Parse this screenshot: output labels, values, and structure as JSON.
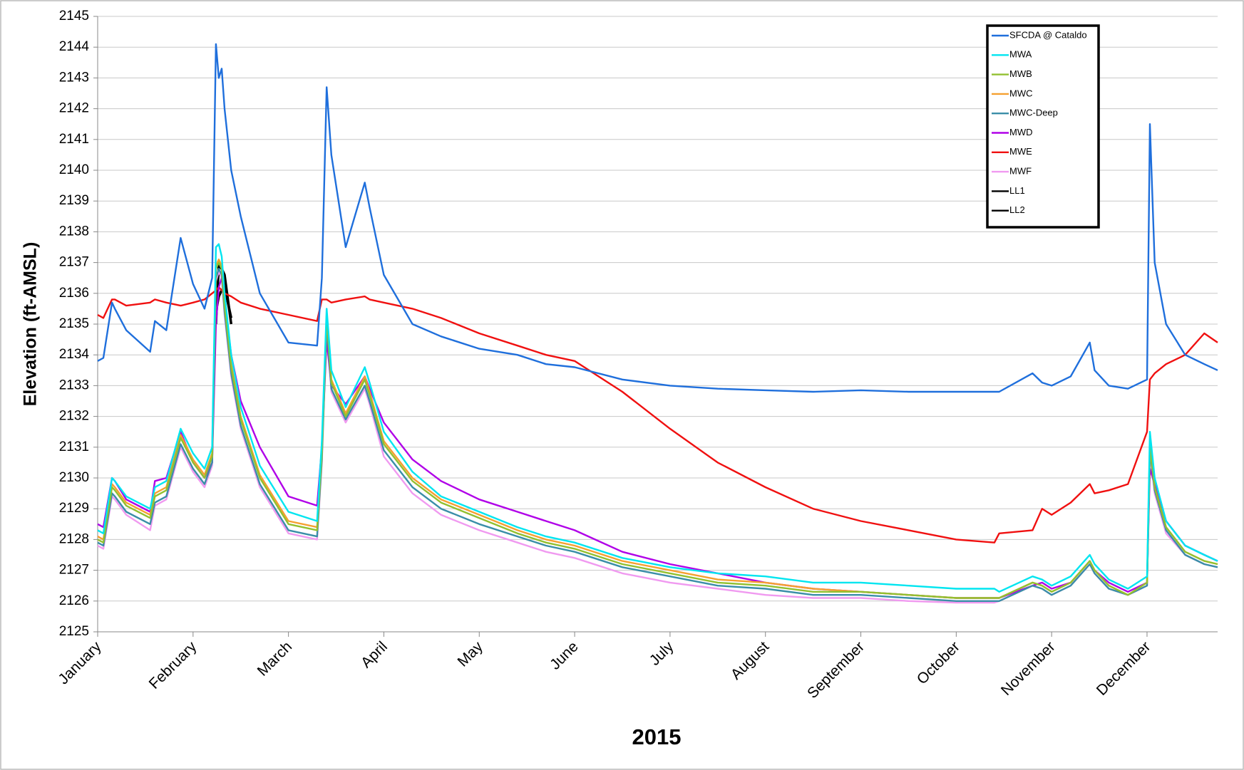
{
  "chart_data": {
    "type": "line",
    "x_label": "2015",
    "y_label": "Elevation (ft-AMSL)",
    "x": [
      0,
      0.06,
      0.15,
      0.18,
      0.3,
      0.55,
      0.6,
      0.72,
      0.87,
      1.0,
      1.12,
      1.2,
      1.24,
      1.27,
      1.3,
      1.33,
      1.4,
      1.5,
      1.7,
      2.0,
      2.3,
      2.35,
      2.4,
      2.45,
      2.6,
      2.8,
      2.85,
      3.0,
      3.3,
      3.6,
      4.0,
      4.4,
      4.7,
      5.0,
      5.5,
      6.0,
      6.5,
      7.0,
      7.5,
      8.0,
      8.5,
      9.0,
      9.4,
      9.45,
      9.8,
      9.9,
      10.0,
      10.2,
      10.4,
      10.45,
      10.6,
      10.8,
      11.0,
      11.03,
      11.08,
      11.2,
      11.4,
      11.6,
      11.74
    ],
    "xlim": [
      0,
      11.74
    ],
    "xticks": [
      {
        "value": 0,
        "label": "January"
      },
      {
        "value": 1,
        "label": "February"
      },
      {
        "value": 2,
        "label": "March"
      },
      {
        "value": 3,
        "label": "April"
      },
      {
        "value": 4,
        "label": "May"
      },
      {
        "value": 5,
        "label": "June"
      },
      {
        "value": 6,
        "label": "July"
      },
      {
        "value": 7,
        "label": "August"
      },
      {
        "value": 8,
        "label": "September"
      },
      {
        "value": 9,
        "label": "October"
      },
      {
        "value": 10,
        "label": "November"
      },
      {
        "value": 11,
        "label": "December"
      }
    ],
    "ylim": [
      2125,
      2145
    ],
    "yticks": [
      2125,
      2126,
      2127,
      2128,
      2129,
      2130,
      2131,
      2132,
      2133,
      2134,
      2135,
      2136,
      2137,
      2138,
      2139,
      2140,
      2141,
      2142,
      2143,
      2144,
      2145
    ],
    "grid": true,
    "legend": "upper right",
    "series": [
      {
        "name": "SFCDA @ Cataldo",
        "color": "#1f6fdc",
        "values": [
          2133.8,
          2133.9,
          2135.7,
          2135.5,
          2134.8,
          2134.1,
          2135.1,
          2134.8,
          2137.8,
          2136.3,
          2135.5,
          2136.5,
          2144.1,
          2143.0,
          2143.3,
          2142.0,
          2140.0,
          2138.5,
          2136.0,
          2134.4,
          2134.3,
          2136.5,
          2142.7,
          2140.5,
          2137.5,
          2139.6,
          2138.8,
          2136.6,
          2135.0,
          2134.6,
          2134.2,
          2134.0,
          2133.7,
          2133.6,
          2133.2,
          2133.0,
          2132.9,
          2132.85,
          2132.8,
          2132.85,
          2132.8,
          2132.8,
          2132.8,
          2132.8,
          2133.4,
          2133.1,
          2133.0,
          2133.3,
          2134.4,
          2133.5,
          2133.0,
          2132.9,
          2133.2,
          2141.5,
          2137.0,
          2135.0,
          2134.0,
          2133.7,
          2133.5
        ]
      },
      {
        "name": "MWA",
        "color": "#00e5f0",
        "values": [
          2128.3,
          2128.2,
          2130.0,
          2129.9,
          2129.4,
          2129.0,
          2129.7,
          2129.9,
          2131.6,
          2130.8,
          2130.3,
          2131.0,
          2137.5,
          2137.6,
          2137.2,
          2136.0,
          2134.0,
          2132.3,
          2130.4,
          2128.9,
          2128.6,
          2131.2,
          2135.5,
          2133.5,
          2132.3,
          2133.6,
          2133.1,
          2131.5,
          2130.2,
          2129.4,
          2128.9,
          2128.4,
          2128.1,
          2127.9,
          2127.4,
          2127.1,
          2126.9,
          2126.8,
          2126.6,
          2126.6,
          2126.5,
          2126.4,
          2126.4,
          2126.3,
          2126.8,
          2126.7,
          2126.5,
          2126.8,
          2127.5,
          2127.2,
          2126.7,
          2126.4,
          2126.8,
          2131.5,
          2130.0,
          2128.6,
          2127.8,
          2127.5,
          2127.3
        ]
      },
      {
        "name": "MWB",
        "color": "#92c030",
        "values": [
          2128.0,
          2127.9,
          2129.7,
          2129.6,
          2129.1,
          2128.7,
          2129.4,
          2129.6,
          2131.3,
          2130.5,
          2130.0,
          2130.7,
          2136.8,
          2137.0,
          2136.8,
          2135.6,
          2133.6,
          2131.9,
          2130.0,
          2128.5,
          2128.3,
          2130.8,
          2135.2,
          2133.1,
          2132.0,
          2133.2,
          2132.7,
          2131.1,
          2129.9,
          2129.2,
          2128.7,
          2128.2,
          2127.9,
          2127.7,
          2127.2,
          2126.9,
          2126.6,
          2126.5,
          2126.3,
          2126.3,
          2126.2,
          2126.1,
          2126.1,
          2126.1,
          2126.6,
          2126.5,
          2126.3,
          2126.6,
          2127.3,
          2127.0,
          2126.5,
          2126.2,
          2126.6,
          2131.0,
          2129.7,
          2128.4,
          2127.6,
          2127.3,
          2127.2
        ]
      },
      {
        "name": "MWC",
        "color": "#f5a030",
        "values": [
          2128.1,
          2128.0,
          2129.8,
          2129.7,
          2129.2,
          2128.8,
          2129.5,
          2129.7,
          2131.4,
          2130.6,
          2130.1,
          2130.8,
          2136.9,
          2137.1,
          2136.9,
          2135.7,
          2133.7,
          2132.0,
          2130.1,
          2128.6,
          2128.4,
          2130.9,
          2135.3,
          2133.2,
          2132.1,
          2133.3,
          2132.8,
          2131.2,
          2130.0,
          2129.3,
          2128.8,
          2128.3,
          2128.0,
          2127.8,
          2127.3,
          2127.0,
          2126.7,
          2126.6,
          2126.4,
          2126.3,
          2126.2,
          2126.1,
          2126.1,
          2126.1,
          2126.6,
          2126.5,
          2126.3,
          2126.6,
          2127.3,
          2127.0,
          2126.5,
          2126.2,
          2126.6,
          2131.1,
          2129.7,
          2128.4,
          2127.6,
          2127.3,
          2127.2
        ]
      },
      {
        "name": "MWC-Deep",
        "color": "#3a8ea8",
        "values": [
          2127.9,
          2127.8,
          2129.5,
          2129.4,
          2128.9,
          2128.5,
          2129.2,
          2129.4,
          2131.1,
          2130.3,
          2129.8,
          2130.5,
          2136.5,
          2136.8,
          2136.6,
          2135.4,
          2133.4,
          2131.7,
          2129.8,
          2128.3,
          2128.1,
          2130.6,
          2135.0,
          2132.9,
          2131.9,
          2133.0,
          2132.5,
          2130.9,
          2129.7,
          2129.0,
          2128.5,
          2128.1,
          2127.8,
          2127.6,
          2127.1,
          2126.8,
          2126.5,
          2126.4,
          2126.2,
          2126.2,
          2126.1,
          2126.0,
          2126.0,
          2126.0,
          2126.5,
          2126.4,
          2126.2,
          2126.5,
          2127.2,
          2126.9,
          2126.4,
          2126.2,
          2126.5,
          2130.9,
          2129.6,
          2128.3,
          2127.5,
          2127.2,
          2127.1
        ]
      },
      {
        "name": "MWD",
        "color": "#b000e8",
        "values": [
          2128.5,
          2128.4,
          2130.0,
          2129.9,
          2129.3,
          2128.9,
          2129.9,
          2130.0,
          2131.5,
          2130.5,
          2130.0,
          2130.5,
          2135.0,
          2136.2,
          2136.5,
          2135.8,
          2134.0,
          2132.5,
          2131.0,
          2129.4,
          2129.1,
          2131.0,
          2134.5,
          2133.0,
          2132.4,
          2133.3,
          2132.9,
          2131.8,
          2130.6,
          2129.9,
          2129.3,
          2128.9,
          2128.6,
          2128.3,
          2127.6,
          2127.2,
          2126.9,
          2126.6,
          2126.4,
          2126.3,
          2126.2,
          2126.1,
          2126.1,
          2126.1,
          2126.5,
          2126.6,
          2126.4,
          2126.6,
          2127.3,
          2127.0,
          2126.6,
          2126.3,
          2126.6,
          2130.3,
          2129.8,
          2128.6,
          2127.8,
          2127.5,
          2127.3
        ]
      },
      {
        "name": "MWE",
        "color": "#f01010",
        "values": [
          2135.3,
          2135.2,
          2135.8,
          2135.8,
          2135.6,
          2135.7,
          2135.8,
          2135.7,
          2135.6,
          2135.7,
          2135.8,
          2136.0,
          2136.1,
          2136.2,
          2136.1,
          2136.0,
          2135.9,
          2135.7,
          2135.5,
          2135.3,
          2135.1,
          2135.8,
          2135.8,
          2135.7,
          2135.8,
          2135.9,
          2135.8,
          2135.7,
          2135.5,
          2135.2,
          2134.7,
          2134.3,
          2134.0,
          2133.8,
          2132.8,
          2131.6,
          2130.5,
          2129.7,
          2129.0,
          2128.6,
          2128.3,
          2128.0,
          2127.9,
          2128.2,
          2128.3,
          2129.0,
          2128.8,
          2129.2,
          2129.8,
          2129.5,
          2129.6,
          2129.8,
          2131.5,
          2133.2,
          2133.4,
          2133.7,
          2134.0,
          2134.7,
          2134.4
        ]
      },
      {
        "name": "MWF",
        "color": "#f09af0",
        "values": [
          2127.8,
          2127.7,
          2129.4,
          2129.3,
          2128.8,
          2128.3,
          2129.1,
          2129.3,
          2131.0,
          2130.2,
          2129.7,
          2130.4,
          2136.4,
          2136.7,
          2136.5,
          2135.3,
          2133.3,
          2131.6,
          2129.7,
          2128.2,
          2128.0,
          2130.5,
          2134.9,
          2132.8,
          2131.8,
          2132.9,
          2132.4,
          2130.7,
          2129.5,
          2128.8,
          2128.3,
          2127.9,
          2127.6,
          2127.4,
          2126.9,
          2126.6,
          2126.4,
          2126.2,
          2126.1,
          2126.1,
          2126.0,
          2125.95,
          2125.95,
          2126.0,
          2126.5,
          2126.4,
          2126.2,
          2126.5,
          2127.2,
          2126.9,
          2126.4,
          2126.2,
          2126.5,
          2130.8,
          2129.5,
          2128.2,
          2127.5,
          2127.2,
          2127.1
        ]
      },
      {
        "name": "LL1",
        "color": "#000000",
        "values": [
          null,
          null,
          null,
          null,
          null,
          null,
          null,
          null,
          null,
          null,
          null,
          null,
          2135.0,
          2136.9,
          2136.8,
          2136.6,
          2135.0,
          null,
          null,
          null,
          null,
          null,
          null,
          null,
          null,
          null,
          null,
          null,
          null,
          null,
          null,
          null,
          null,
          null,
          null,
          null,
          null,
          null,
          null,
          null,
          null,
          null,
          null,
          null,
          null,
          null,
          null,
          null,
          null,
          null,
          null,
          null,
          null,
          null,
          null,
          null,
          null,
          null,
          null
        ]
      },
      {
        "name": "LL2",
        "color": "#000000",
        "values": [
          null,
          null,
          null,
          null,
          null,
          null,
          null,
          null,
          null,
          null,
          null,
          null,
          2135.4,
          2135.9,
          2136.1,
          2136.2,
          2135.2,
          null,
          null,
          null,
          null,
          null,
          null,
          null,
          null,
          null,
          null,
          null,
          null,
          null,
          null,
          null,
          null,
          null,
          null,
          null,
          null,
          null,
          null,
          null,
          null,
          null,
          null,
          null,
          null,
          null,
          null,
          null,
          null,
          null,
          null,
          null,
          null,
          null,
          null,
          null,
          null,
          null,
          null
        ]
      }
    ]
  }
}
